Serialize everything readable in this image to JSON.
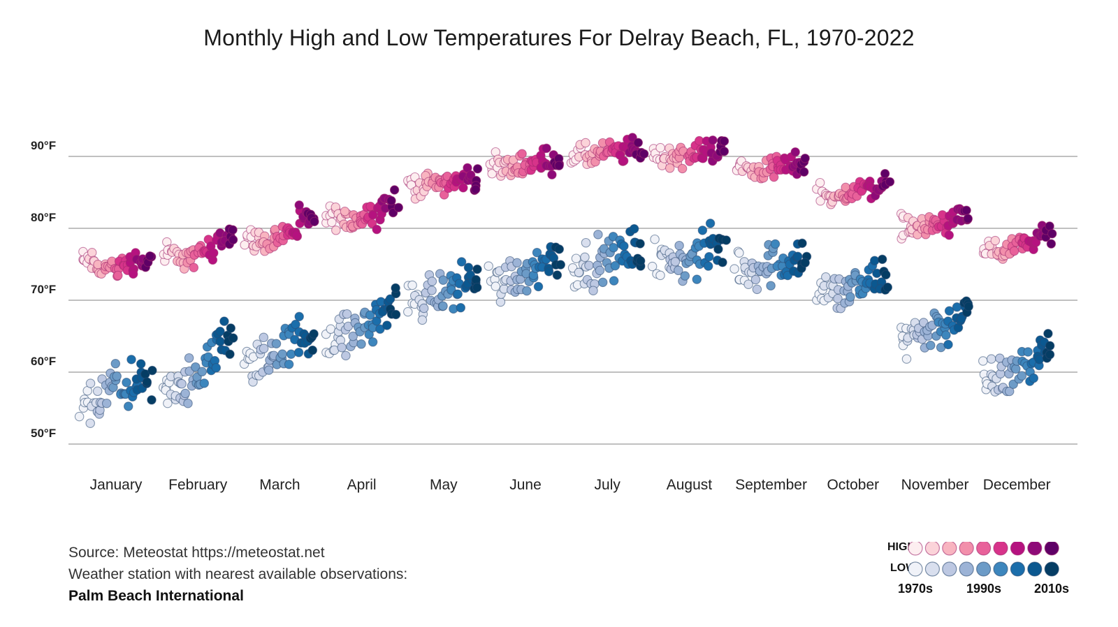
{
  "chart_data": {
    "type": "scatter",
    "title": "Monthly High and Low Temperatures For Delray Beach, FL, 1970-2022",
    "xlabel": "",
    "ylabel": "",
    "x_categories": [
      "January",
      "February",
      "March",
      "April",
      "May",
      "June",
      "July",
      "August",
      "September",
      "October",
      "November",
      "December"
    ],
    "y_ticks": [
      50,
      60,
      70,
      80,
      90
    ],
    "y_tick_labels": [
      "50°F",
      "60°F",
      "70°F",
      "80°F",
      "90°F"
    ],
    "ylim": [
      44,
      95
    ],
    "grid": true,
    "year_range": [
      1970,
      2022
    ],
    "high_monthly_mean_by_decade": [
      {
        "decade": "1970s",
        "values": [
          75.5,
          76.5,
          78.5,
          81.5,
          86.0,
          88.5,
          90.0,
          90.0,
          88.5,
          85.0,
          80.5,
          77.0
        ]
      },
      {
        "decade": "1980s",
        "values": [
          74.5,
          76.0,
          78.0,
          81.0,
          86.0,
          88.5,
          90.0,
          90.0,
          88.0,
          84.0,
          80.0,
          76.5
        ]
      },
      {
        "decade": "1990s",
        "values": [
          74.5,
          76.0,
          79.0,
          81.5,
          86.5,
          89.0,
          90.5,
          90.0,
          88.5,
          85.0,
          80.5,
          77.0
        ]
      },
      {
        "decade": "2000s",
        "values": [
          75.0,
          77.0,
          79.5,
          82.0,
          86.5,
          89.0,
          90.5,
          90.5,
          88.5,
          85.5,
          80.5,
          77.5
        ]
      },
      {
        "decade": "2010s",
        "values": [
          75.5,
          79.0,
          81.0,
          83.5,
          87.0,
          89.5,
          91.0,
          91.0,
          89.0,
          86.0,
          81.5,
          79.0
        ]
      }
    ],
    "low_monthly_mean_by_decade": [
      {
        "decade": "1970s",
        "values": [
          55.0,
          57.0,
          61.0,
          65.0,
          70.0,
          72.5,
          75.0,
          75.5,
          74.5,
          71.0,
          65.0,
          59.0
        ]
      },
      {
        "decade": "1980s",
        "values": [
          56.0,
          58.0,
          62.0,
          65.0,
          70.5,
          73.0,
          75.0,
          75.5,
          74.5,
          71.0,
          65.5,
          59.0
        ]
      },
      {
        "decade": "1990s",
        "values": [
          58.0,
          60.0,
          63.0,
          66.0,
          71.0,
          74.0,
          75.5,
          75.5,
          75.0,
          71.5,
          66.0,
          60.0
        ]
      },
      {
        "decade": "2000s",
        "values": [
          58.0,
          61.0,
          64.0,
          67.0,
          71.5,
          74.5,
          76.0,
          76.0,
          75.5,
          72.0,
          66.5,
          61.0
        ]
      },
      {
        "decade": "2010s",
        "values": [
          58.0,
          64.5,
          65.0,
          69.0,
          73.0,
          76.0,
          77.0,
          77.5,
          76.0,
          73.0,
          68.0,
          63.0
        ]
      }
    ]
  },
  "title": "Monthly High and Low Temperatures For Delray Beach, FL, 1970-2022",
  "source": {
    "line1": "Source: Meteostat https://meteostat.net",
    "line2": "Weather station with nearest available observations:",
    "station": "Palm Beach International"
  },
  "legend": {
    "high_label": "HIGH",
    "low_label": "LOW",
    "decade_labels": [
      "1970s",
      "1990s",
      "2010s"
    ],
    "high_colors": [
      "#fdeef0",
      "#fbd3d9",
      "#f8b4c0",
      "#f28fab",
      "#e8619a",
      "#d7338a",
      "#b5127f",
      "#8e0a78",
      "#5f0066"
    ],
    "low_colors": [
      "#f0f2f8",
      "#d9dfee",
      "#bdc8e2",
      "#9cb3d6",
      "#6c9bc7",
      "#3d86bd",
      "#1b6eab",
      "#0b5890",
      "#053d64"
    ]
  }
}
